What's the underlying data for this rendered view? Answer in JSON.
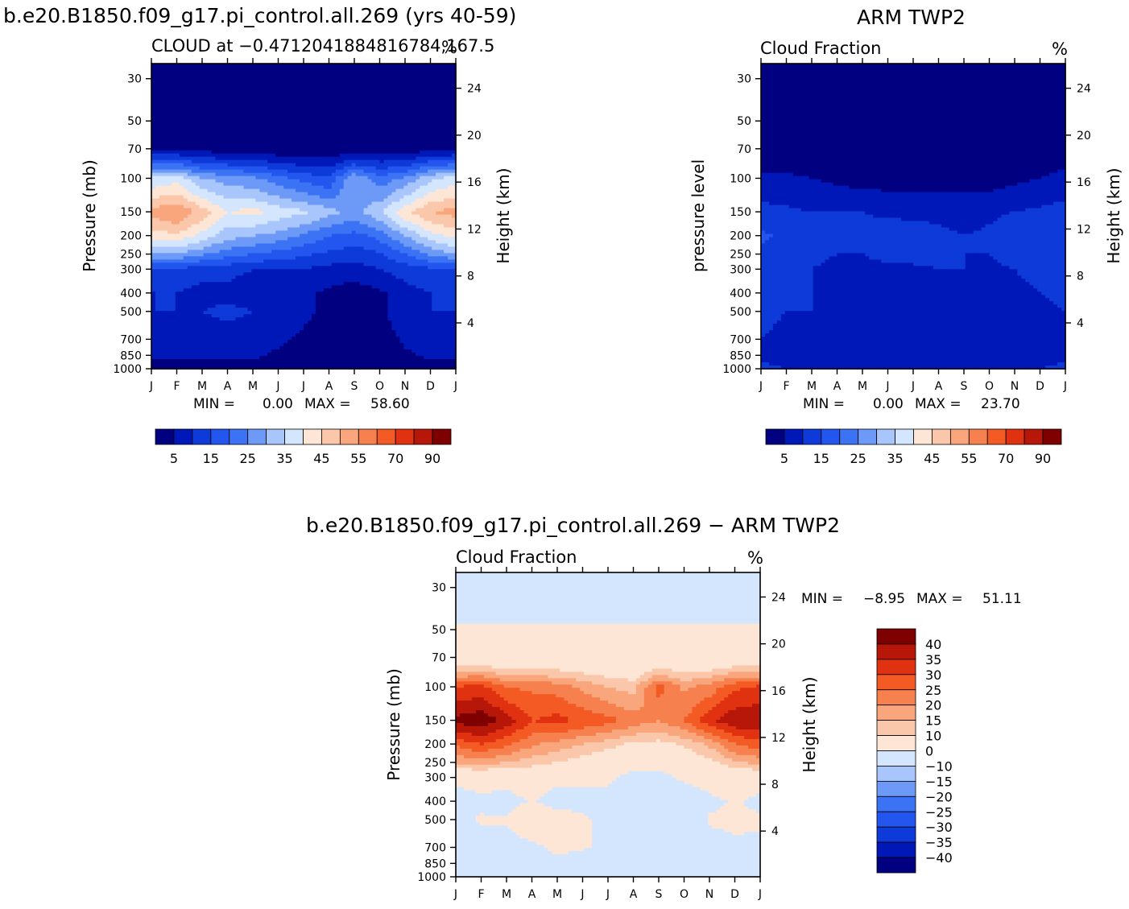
{
  "colors": {
    "absolute_scale": [
      "#000080",
      "#0018b8",
      "#0d3ad8",
      "#2256ee",
      "#3b73f4",
      "#6d99f7",
      "#a8c6fb",
      "#d3e6fd",
      "#fde6d6",
      "#fbc7ab",
      "#f9a67d",
      "#f6814f",
      "#f45a24",
      "#e03210",
      "#b61708",
      "#7e0000"
    ],
    "diff_scale": [
      "#7e0000",
      "#b61708",
      "#e03210",
      "#f45a24",
      "#f6814f",
      "#f9a67d",
      "#fbc7ab",
      "#fde6d6",
      "#d3e6fd",
      "#a8c6fb",
      "#6d99f7",
      "#3b73f4",
      "#2256ee",
      "#0d3ad8",
      "#0018b8",
      "#000080"
    ]
  },
  "chart_data": [
    {
      "type": "heatmap",
      "title": "b.e20.B1850.f09_g17.pi_control.all.269 (yrs 40-59)",
      "subtitle": "CLOUD at −0.4712041884816784,167.5",
      "units": "%",
      "xlabel": "",
      "ylabel": "Pressure (mb)",
      "ylabel_right": "Height (km)",
      "x": [
        "J",
        "F",
        "M",
        "A",
        "M",
        "J",
        "J",
        "A",
        "S",
        "O",
        "N",
        "D",
        "J"
      ],
      "y_ticks": [
        "30",
        "50",
        "70",
        "100",
        "150",
        "200",
        "250",
        "300",
        "400",
        "500",
        "700",
        "850",
        "1000"
      ],
      "y_right_ticks": [
        "24",
        "20",
        "16",
        "12",
        "8",
        "4"
      ],
      "min_label": "MIN =",
      "min": "0.00",
      "max_label": "MAX =",
      "max": "58.60",
      "colorbar_labels": [
        "5",
        "15",
        "25",
        "35",
        "45",
        "55",
        "70",
        "90"
      ],
      "levels": [
        30,
        50,
        70,
        100,
        150,
        200,
        250,
        300,
        400,
        500,
        700,
        850,
        1000
      ],
      "values": [
        [
          0,
          0,
          0,
          0,
          0,
          0,
          0,
          0,
          0,
          0,
          0,
          0,
          0
        ],
        [
          0,
          0,
          0,
          0,
          0,
          0,
          0,
          0,
          0,
          0,
          0,
          0,
          0
        ],
        [
          4,
          4,
          3,
          2,
          2,
          1,
          1,
          1,
          1,
          2,
          2,
          3,
          4
        ],
        [
          36,
          38,
          30,
          28,
          26,
          22,
          18,
          16,
          30,
          22,
          26,
          34,
          38
        ],
        [
          52,
          55,
          48,
          40,
          42,
          38,
          36,
          32,
          28,
          34,
          44,
          50,
          52
        ],
        [
          42,
          44,
          38,
          32,
          30,
          28,
          24,
          20,
          18,
          22,
          30,
          38,
          42
        ],
        [
          30,
          30,
          26,
          22,
          20,
          18,
          16,
          14,
          12,
          14,
          20,
          26,
          30
        ],
        [
          14,
          14,
          12,
          12,
          10,
          10,
          10,
          8,
          8,
          10,
          12,
          14,
          14
        ],
        [
          10,
          10,
          8,
          8,
          6,
          6,
          6,
          4,
          2,
          4,
          8,
          10,
          10
        ],
        [
          10,
          10,
          10,
          12,
          10,
          8,
          6,
          4,
          2,
          4,
          8,
          10,
          10
        ],
        [
          8,
          6,
          6,
          6,
          6,
          6,
          4,
          2,
          1,
          2,
          6,
          8,
          8
        ],
        [
          6,
          6,
          6,
          6,
          6,
          4,
          4,
          2,
          1,
          2,
          4,
          6,
          6
        ],
        [
          2,
          2,
          2,
          2,
          2,
          2,
          2,
          2,
          2,
          2,
          2,
          2,
          2
        ]
      ]
    },
    {
      "type": "heatmap",
      "title": "ARM TWP2",
      "subtitle": "Cloud Fraction",
      "units": "%",
      "xlabel": "",
      "ylabel": "pressure level",
      "ylabel_right": "Height (km)",
      "x": [
        "J",
        "F",
        "M",
        "A",
        "M",
        "J",
        "J",
        "A",
        "S",
        "O",
        "N",
        "D",
        "J"
      ],
      "y_ticks": [
        "30",
        "50",
        "70",
        "100",
        "150",
        "200",
        "250",
        "300",
        "400",
        "500",
        "700",
        "850",
        "1000"
      ],
      "y_right_ticks": [
        "24",
        "20",
        "16",
        "12",
        "8",
        "4"
      ],
      "min_label": "MIN =",
      "min": "0.00",
      "max_label": "MAX =",
      "max": "23.70",
      "colorbar_labels": [
        "5",
        "15",
        "25",
        "35",
        "45",
        "55",
        "70",
        "90"
      ],
      "levels": [
        30,
        50,
        70,
        100,
        150,
        200,
        250,
        300,
        400,
        500,
        700,
        850,
        1000
      ],
      "values": [
        [
          0,
          0,
          0,
          0,
          0,
          0,
          0,
          0,
          0,
          0,
          0,
          0,
          0
        ],
        [
          0,
          0,
          0,
          0,
          0,
          0,
          0,
          0,
          0,
          0,
          0,
          0,
          0
        ],
        [
          1,
          1,
          1,
          1,
          0,
          0,
          0,
          0,
          0,
          0,
          1,
          1,
          1
        ],
        [
          6,
          6,
          5,
          4,
          3,
          3,
          3,
          3,
          3,
          3,
          4,
          5,
          7
        ],
        [
          12,
          11,
          10,
          10,
          10,
          9,
          9,
          9,
          8,
          9,
          10,
          11,
          12
        ],
        [
          16,
          14,
          12,
          11,
          12,
          13,
          12,
          11,
          10,
          11,
          14,
          13,
          14
        ],
        [
          14,
          13,
          11,
          10,
          10,
          11,
          12,
          11,
          10,
          10,
          12,
          12,
          13
        ],
        [
          13,
          12,
          10,
          9,
          9,
          9,
          9,
          10,
          10,
          9,
          10,
          11,
          12
        ],
        [
          12,
          11,
          10,
          8,
          8,
          8,
          8,
          9,
          6,
          8,
          9,
          10,
          11
        ],
        [
          11,
          10,
          10,
          8,
          7,
          7,
          8,
          9,
          6,
          7,
          8,
          9,
          10
        ],
        [
          10,
          9,
          9,
          7,
          5,
          6,
          5,
          8,
          6,
          7,
          8,
          9,
          9
        ],
        [
          9,
          9,
          8,
          7,
          7,
          7,
          7,
          7,
          7,
          7,
          8,
          8,
          9
        ],
        [
          11,
          10,
          10,
          10,
          10,
          10,
          10,
          10,
          10,
          10,
          10,
          10,
          11
        ]
      ]
    },
    {
      "type": "heatmap",
      "title": "b.e20.B1850.f09_g17.pi_control.all.269 − ARM TWP2",
      "subtitle": "Cloud Fraction",
      "units": "%",
      "xlabel": "",
      "ylabel": "Pressure (mb)",
      "ylabel_right": "Height (km)",
      "x": [
        "J",
        "F",
        "M",
        "A",
        "M",
        "J",
        "J",
        "A",
        "S",
        "O",
        "N",
        "D",
        "J"
      ],
      "y_ticks": [
        "30",
        "50",
        "70",
        "100",
        "150",
        "200",
        "250",
        "300",
        "400",
        "500",
        "700",
        "850",
        "1000"
      ],
      "y_right_ticks": [
        "24",
        "20",
        "16",
        "12",
        "8",
        "4"
      ],
      "min_label": "MIN =",
      "min": "−8.95",
      "max_label": "MAX =",
      "max": "51.11",
      "colorbar_labels": [
        "40",
        "35",
        "30",
        "25",
        "20",
        "15",
        "10",
        "0",
        "−10",
        "−15",
        "−20",
        "−25",
        "−30",
        "−35",
        "−40"
      ],
      "levels": [
        30,
        50,
        70,
        100,
        150,
        200,
        250,
        300,
        400,
        500,
        700,
        850,
        1000
      ],
      "values": [
        [
          -2,
          -2,
          -2,
          -2,
          -2,
          -2,
          -2,
          -2,
          -2,
          -2,
          -2,
          -2,
          -2
        ],
        [
          0.5,
          0.5,
          0.5,
          0.5,
          0.5,
          0.5,
          0.5,
          0.5,
          0.5,
          0.5,
          0.5,
          0.5,
          0.5
        ],
        [
          3,
          3,
          2,
          2,
          2,
          1,
          1,
          1,
          1,
          2,
          2,
          3,
          3
        ],
        [
          30,
          32,
          25,
          24,
          23,
          19,
          15,
          13,
          27,
          19,
          22,
          29,
          31
        ],
        [
          42,
          44,
          38,
          30,
          32,
          29,
          27,
          23,
          20,
          25,
          34,
          39,
          40
        ],
        [
          26,
          30,
          26,
          21,
          18,
          15,
          12,
          9,
          8,
          11,
          16,
          25,
          28
        ],
        [
          16,
          17,
          15,
          12,
          10,
          7,
          4,
          3,
          2,
          4,
          8,
          14,
          17
        ],
        [
          1,
          2,
          2,
          3,
          1,
          1,
          1,
          -2,
          -2,
          1,
          2,
          3,
          2
        ],
        [
          -2,
          -1,
          -2,
          0.5,
          -2,
          -2,
          -2,
          -5,
          -4,
          -4,
          -1,
          0.5,
          -1
        ],
        [
          -1,
          0.5,
          0.5,
          4,
          3,
          1,
          -2,
          -5,
          -4,
          -3,
          0.5,
          1,
          0.5
        ],
        [
          -2,
          -3,
          -3,
          -1,
          1,
          0.5,
          -1,
          -6,
          -5,
          -5,
          -2,
          -1,
          -1
        ],
        [
          -3,
          -3,
          -2,
          -1,
          -1,
          -3,
          -3,
          -5,
          -6,
          -5,
          -4,
          -2,
          -3
        ],
        [
          -9,
          -8,
          -8,
          -8,
          -8,
          -8,
          -8,
          -8,
          -8,
          -8,
          -8,
          -8,
          -9
        ]
      ]
    }
  ]
}
